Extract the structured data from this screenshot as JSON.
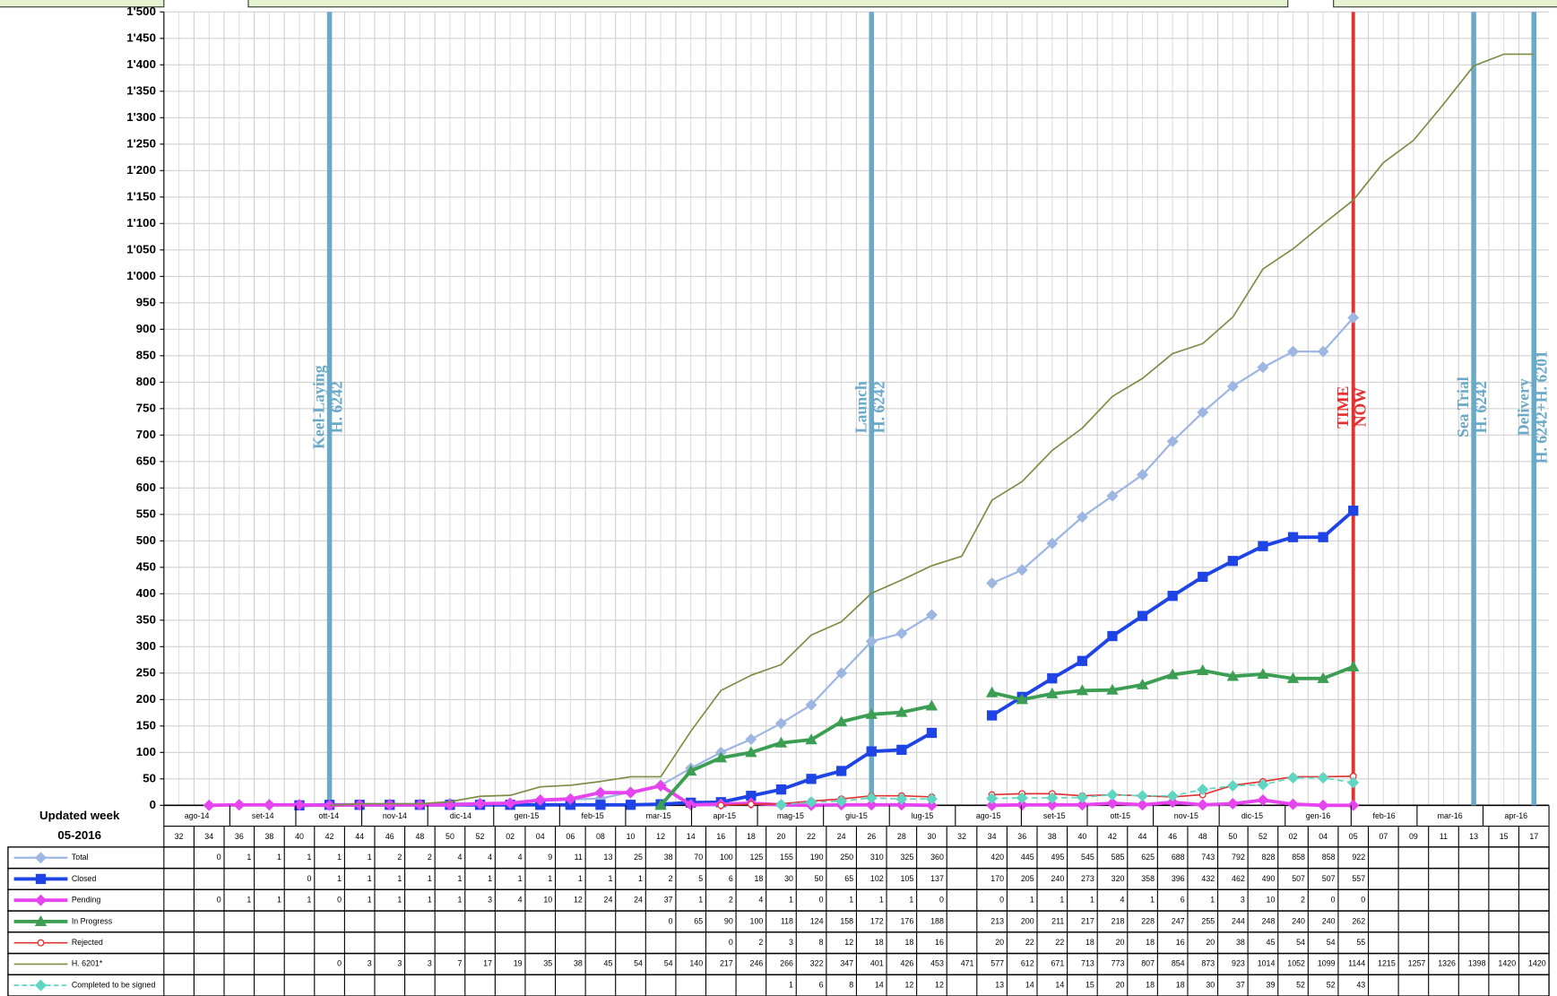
{
  "chart_data": {
    "type": "line",
    "categories": [
      "32",
      "34",
      "36",
      "38",
      "40",
      "42",
      "44",
      "46",
      "48",
      "50",
      "52",
      "02",
      "04",
      "06",
      "08",
      "10",
      "12",
      "14",
      "16",
      "18",
      "20",
      "22",
      "24",
      "26",
      "28",
      "30",
      "32",
      "34",
      "36",
      "38",
      "40",
      "42",
      "44",
      "46",
      "48",
      "50",
      "52",
      "02",
      "04",
      "05",
      "07",
      "09",
      "11",
      "13",
      "15",
      "17"
    ],
    "months": [
      "ago-14",
      "set-14",
      "ott-14",
      "nov-14",
      "dic-14",
      "gen-15",
      "feb-15",
      "mar-15",
      "apr-15",
      "mag-15",
      "giu-15",
      "lug-15",
      "ago-15",
      "set-15",
      "ott-15",
      "nov-15",
      "dic-15",
      "gen-16",
      "feb-16",
      "mar-16",
      "apr-16"
    ],
    "updated_label": "Updated week",
    "updated_value": "05-2016",
    "ylim": [
      0,
      1500
    ],
    "yticks": [
      0,
      50,
      100,
      150,
      200,
      250,
      300,
      350,
      400,
      450,
      500,
      550,
      600,
      650,
      700,
      750,
      800,
      850,
      900,
      950,
      {
        "value": 1000,
        "label": "1'000"
      },
      {
        "value": 1050,
        "label": "1'050"
      },
      {
        "value": 1100,
        "label": "1'100"
      },
      {
        "value": 1150,
        "label": "1'150"
      },
      {
        "value": 1200,
        "label": "1'200"
      },
      {
        "value": 1250,
        "label": "1'250"
      },
      {
        "value": 1300,
        "label": "1'300"
      },
      {
        "value": 1350,
        "label": "1'350"
      },
      {
        "value": 1400,
        "label": "1'400"
      },
      {
        "value": 1450,
        "label": "1'450"
      },
      {
        "value": 1500,
        "label": "1'500"
      }
    ],
    "grid": true,
    "events": [
      {
        "lines": [
          "Keel-Laying",
          "H. 6242"
        ],
        "at": 5,
        "color": "#6aaac8"
      },
      {
        "lines": [
          "Launch",
          "H. 6242"
        ],
        "at": 23,
        "color": "#6aaac8"
      },
      {
        "lines": [
          "TIME",
          "NOW"
        ],
        "at": 39,
        "color": "#e53030"
      },
      {
        "lines": [
          "Sea Trial",
          "H. 6242"
        ],
        "at": 43,
        "color": "#6aaac8"
      },
      {
        "lines": [
          "Delivery",
          "H. 6242+H. 6201"
        ],
        "at": 45,
        "color": "#6aaac8"
      }
    ],
    "series": [
      {
        "name": "Total",
        "color": "#9db6e2",
        "width": 2,
        "marker": "diamond",
        "values": [
          null,
          0,
          1,
          1,
          1,
          1,
          1,
          2,
          2,
          4,
          4,
          4,
          9,
          11,
          13,
          25,
          38,
          70,
          100,
          125,
          155,
          190,
          250,
          310,
          325,
          360,
          null,
          420,
          445,
          495,
          545,
          585,
          625,
          688,
          743,
          792,
          828,
          858,
          858,
          922,
          null,
          null,
          null,
          null,
          null,
          null
        ]
      },
      {
        "name": "Closed",
        "color": "#1f44e6",
        "width": 3.5,
        "marker": "square",
        "values": [
          null,
          null,
          null,
          null,
          0,
          1,
          1,
          1,
          1,
          1,
          1,
          1,
          1,
          1,
          1,
          1,
          2,
          5,
          6,
          18,
          30,
          50,
          65,
          102,
          105,
          137,
          null,
          170,
          205,
          240,
          273,
          320,
          358,
          396,
          432,
          462,
          490,
          507,
          507,
          557,
          null,
          null,
          null,
          null,
          null,
          null
        ]
      },
      {
        "name": "Pending",
        "color": "#e644ee",
        "width": 3.5,
        "marker": "diamond",
        "values": [
          null,
          0,
          1,
          1,
          1,
          0,
          1,
          1,
          1,
          1,
          3,
          4,
          10,
          12,
          24,
          24,
          37,
          1,
          2,
          4,
          1,
          0,
          1,
          1,
          1,
          0,
          null,
          0,
          1,
          1,
          1,
          4,
          1,
          6,
          1,
          3,
          10,
          2,
          0,
          0,
          null,
          null,
          null,
          null,
          null,
          null
        ]
      },
      {
        "name": "In Progress",
        "color": "#3c9e52",
        "width": 3.5,
        "marker": "triangle",
        "values": [
          null,
          null,
          null,
          null,
          null,
          null,
          null,
          null,
          null,
          null,
          null,
          null,
          null,
          null,
          null,
          null,
          0,
          65,
          90,
          100,
          118,
          124,
          158,
          172,
          176,
          188,
          null,
          213,
          200,
          211,
          217,
          218,
          228,
          247,
          255,
          244,
          248,
          240,
          240,
          262,
          null,
          null,
          null,
          null,
          null,
          null
        ]
      },
      {
        "name": "Rejected",
        "color": "#e03434",
        "width": 1.5,
        "marker": "circle",
        "values": [
          null,
          null,
          null,
          null,
          null,
          null,
          null,
          null,
          null,
          null,
          null,
          null,
          null,
          null,
          null,
          null,
          null,
          null,
          0,
          2,
          3,
          8,
          12,
          18,
          18,
          16,
          null,
          20,
          22,
          22,
          18,
          20,
          18,
          16,
          20,
          38,
          45,
          54,
          54,
          55,
          null,
          null,
          null,
          null,
          null,
          null
        ]
      },
      {
        "name": "H. 6201*",
        "color": "#7d8c44",
        "width": 1.5,
        "marker": "none",
        "values": [
          null,
          null,
          null,
          null,
          null,
          0,
          3,
          3,
          3,
          7,
          17,
          19,
          35,
          38,
          45,
          54,
          54,
          140,
          217,
          246,
          266,
          322,
          347,
          401,
          426,
          453,
          471,
          577,
          612,
          671,
          713,
          773,
          807,
          854,
          873,
          923,
          1014,
          1052,
          1099,
          1144,
          1215,
          1257,
          1326,
          1398,
          1420,
          1420
        ]
      },
      {
        "name": "Completed to be signed",
        "color": "#5fd6c2",
        "width": 1.5,
        "marker": "diamond",
        "dash": true,
        "values": [
          null,
          null,
          null,
          null,
          null,
          null,
          null,
          null,
          null,
          null,
          null,
          null,
          null,
          null,
          null,
          null,
          null,
          null,
          null,
          null,
          1,
          6,
          8,
          14,
          12,
          12,
          null,
          13,
          14,
          14,
          15,
          20,
          18,
          18,
          30,
          37,
          39,
          52,
          52,
          43,
          null,
          null,
          null,
          null,
          null,
          null
        ]
      }
    ]
  }
}
